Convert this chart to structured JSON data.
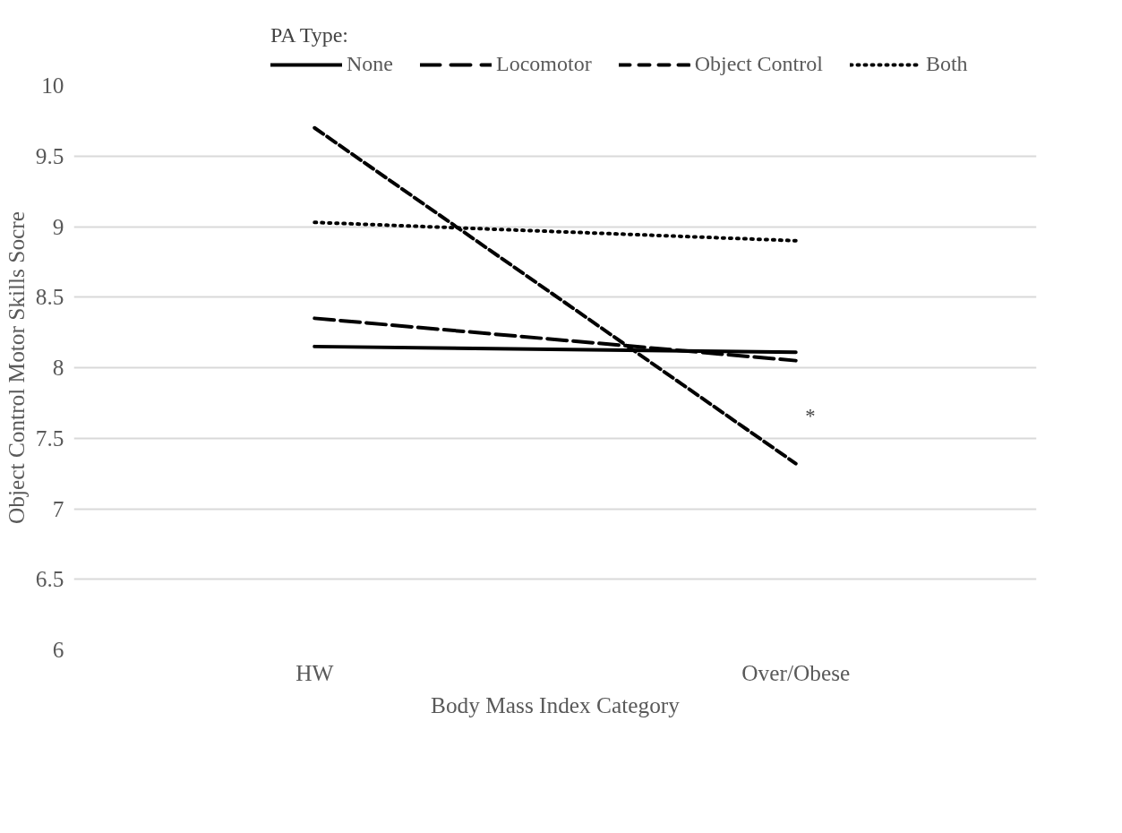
{
  "chart_data": {
    "type": "line",
    "xlabel": "Body Mass Index Category",
    "ylabel": "Object Control Motor Skills Socre",
    "legend_title": "PA Type:",
    "legend": "top",
    "categories": [
      "HW",
      "Over/Obese"
    ],
    "series": [
      {
        "name": "None",
        "color": "#000000",
        "line_style": "solid",
        "values": [
          8.15,
          8.11
        ]
      },
      {
        "name": "Locomotor",
        "color": "#000000",
        "line_style": "dashdot",
        "values": [
          8.35,
          8.05
        ]
      },
      {
        "name": "Object Control",
        "color": "#000000",
        "line_style": "dashed",
        "values": [
          9.7,
          7.32
        ]
      },
      {
        "name": "Both",
        "color": "#000000",
        "line_style": "dotted",
        "values": [
          9.03,
          8.9
        ]
      }
    ],
    "ylim": [
      6,
      10
    ],
    "yticks": [
      6,
      6.5,
      7,
      7.5,
      8,
      8.5,
      9,
      9.5,
      10
    ],
    "grid": "y",
    "annotations": [
      "*"
    ]
  }
}
